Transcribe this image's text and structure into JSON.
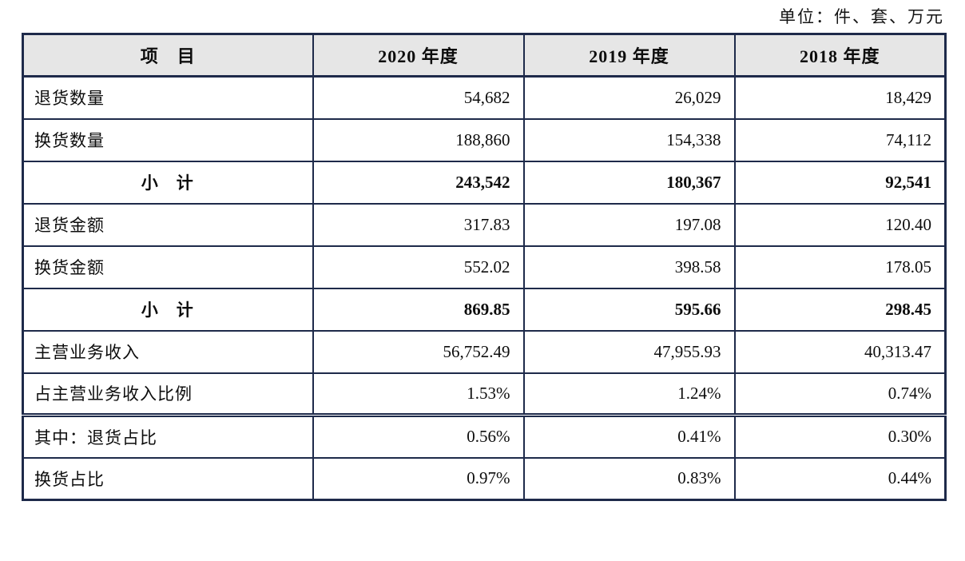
{
  "unit_note": "单位：件、套、万元",
  "table": {
    "headers": [
      "项　目",
      "2020 年度",
      "2019 年度",
      "2018 年度"
    ],
    "rows": [
      {
        "label": "退货数量",
        "values": [
          "54,682",
          "26,029",
          "18,429"
        ],
        "bold": false,
        "double_top": false
      },
      {
        "label": "换货数量",
        "values": [
          "188,860",
          "154,338",
          "74,112"
        ],
        "bold": false,
        "double_top": false
      },
      {
        "label": "小　计",
        "values": [
          "243,542",
          "180,367",
          "92,541"
        ],
        "bold": true,
        "double_top": false
      },
      {
        "label": "退货金额",
        "values": [
          "317.83",
          "197.08",
          "120.40"
        ],
        "bold": false,
        "double_top": false
      },
      {
        "label": "换货金额",
        "values": [
          "552.02",
          "398.58",
          "178.05"
        ],
        "bold": false,
        "double_top": false
      },
      {
        "label": "小　计",
        "values": [
          "869.85",
          "595.66",
          "298.45"
        ],
        "bold": true,
        "double_top": false
      },
      {
        "label": "主营业务收入",
        "values": [
          "56,752.49",
          "47,955.93",
          "40,313.47"
        ],
        "bold": false,
        "double_top": false
      },
      {
        "label": "占主营业务收入比例",
        "values": [
          "1.53%",
          "1.24%",
          "0.74%"
        ],
        "bold": false,
        "double_top": false
      },
      {
        "label": "其中：退货占比",
        "values": [
          "0.56%",
          "0.41%",
          "0.30%"
        ],
        "bold": false,
        "double_top": true
      },
      {
        "label": "换货占比",
        "values": [
          "0.97%",
          "0.83%",
          "0.44%"
        ],
        "bold": false,
        "double_top": false
      }
    ]
  }
}
